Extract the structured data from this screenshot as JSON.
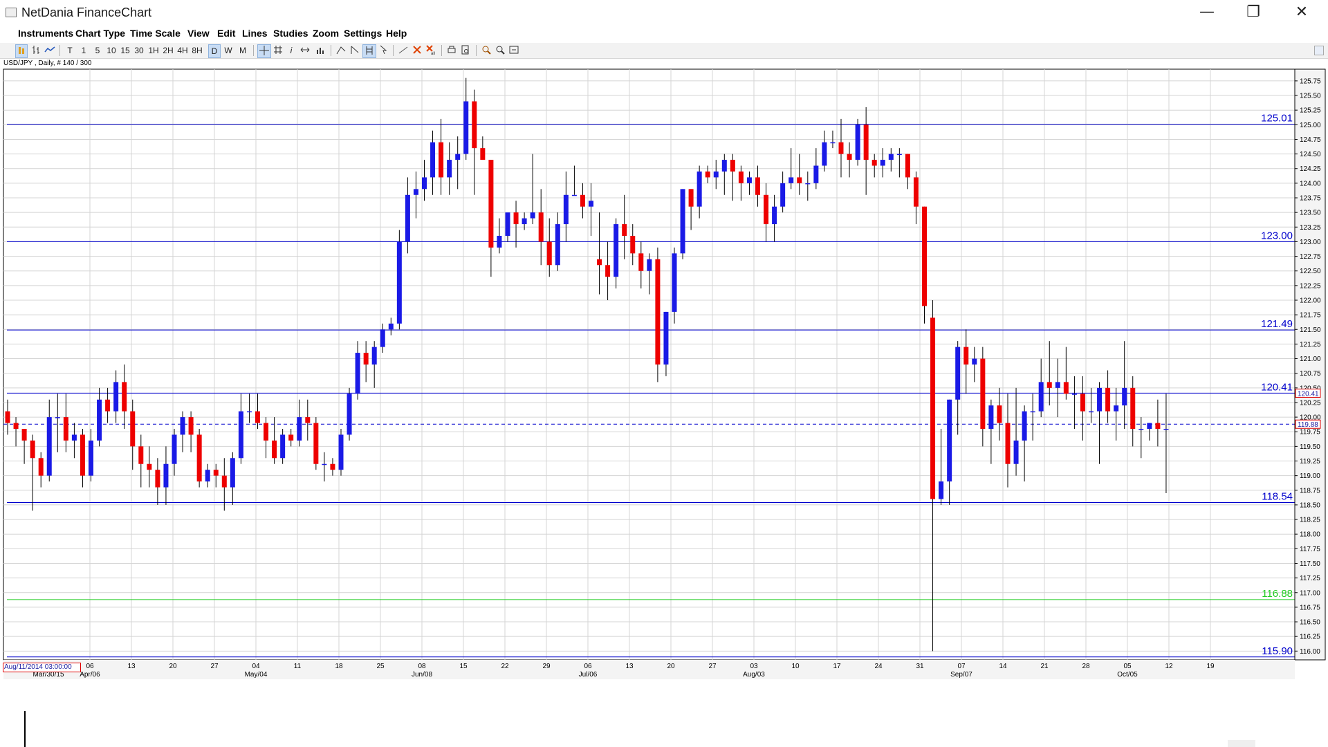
{
  "window": {
    "title": "NetDania FinanceChart",
    "minimize_glyph": "—",
    "restore_glyph": "❐",
    "close_glyph": "✕"
  },
  "menu": [
    "Instruments",
    "Chart Type",
    "Time Scale",
    "View",
    "Edit",
    "Lines",
    "Studies",
    "Zoom",
    "Settings",
    "Help"
  ],
  "toolbar": {
    "intervals": [
      "T",
      "1",
      "5",
      "10",
      "15",
      "30",
      "1H",
      "2H",
      "4H",
      "8H",
      "D",
      "W",
      "M"
    ],
    "active_interval": "D"
  },
  "symbol_label": "USD/JPY , Daily, # 140 / 300",
  "cursor_timestamp": "Aug/11/2014 03:00:00",
  "colors": {
    "up": "#1a1ae6",
    "down": "#ee0000",
    "level": "#0000cc",
    "support": "#22cc22",
    "grid": "#d4d4d4",
    "axis_bg": "#f4f4f4"
  },
  "chart_data": {
    "type": "candlestick",
    "instrument": "USD/JPY",
    "interval": "Daily",
    "ylim": [
      115.85,
      125.95
    ],
    "y_ticks": [
      "116.00",
      "116.25",
      "116.50",
      "116.75",
      "117.00",
      "117.25",
      "117.50",
      "117.75",
      "118.00",
      "118.25",
      "118.50",
      "118.75",
      "119.00",
      "119.25",
      "119.50",
      "119.75",
      "120.00",
      "120.25",
      "120.50",
      "120.75",
      "121.00",
      "121.25",
      "121.50",
      "121.75",
      "122.00",
      "122.25",
      "122.50",
      "122.75",
      "123.00",
      "123.25",
      "123.50",
      "123.75",
      "124.00",
      "124.25",
      "124.50",
      "124.75",
      "125.00",
      "125.25",
      "125.50",
      "125.75"
    ],
    "x_ticks": [
      {
        "label": "06",
        "major": "Apr/06"
      },
      {
        "label": "13"
      },
      {
        "label": "20"
      },
      {
        "label": "27"
      },
      {
        "label": "04",
        "major": "May/04"
      },
      {
        "label": "11"
      },
      {
        "label": "18"
      },
      {
        "label": "25"
      },
      {
        "label": "08",
        "major": "Jun/08"
      },
      {
        "label": "15"
      },
      {
        "label": "22"
      },
      {
        "label": "29"
      },
      {
        "label": "06",
        "major": "Jul/06"
      },
      {
        "label": "13"
      },
      {
        "label": "20"
      },
      {
        "label": "27"
      },
      {
        "label": "03",
        "major": "Aug/03"
      },
      {
        "label": "10"
      },
      {
        "label": "17"
      },
      {
        "label": "24"
      },
      {
        "label": "31"
      },
      {
        "label": "07",
        "major": "Sep/07"
      },
      {
        "label": "14"
      },
      {
        "label": "21"
      },
      {
        "label": "28"
      },
      {
        "label": "05",
        "major": "Oct/05"
      },
      {
        "label": "12"
      },
      {
        "label": "19"
      }
    ],
    "first_major_label": "Mar/30/15",
    "horizontal_levels": [
      {
        "value": 125.01,
        "label": "125.01",
        "color": "#0000cc"
      },
      {
        "value": 123.0,
        "label": "123.00",
        "color": "#0000cc"
      },
      {
        "value": 121.49,
        "label": "121.49",
        "color": "#0000cc"
      },
      {
        "value": 120.41,
        "label": "120.41",
        "color": "#0000cc"
      },
      {
        "value": 118.54,
        "label": "118.54",
        "color": "#0000cc"
      },
      {
        "value": 116.88,
        "label": "116.88",
        "color": "#22cc22"
      },
      {
        "value": 115.9,
        "label": "115.90",
        "color": "#0000cc"
      }
    ],
    "price_markers": [
      {
        "value": 120.41,
        "label": "120.41",
        "color": "#e00000"
      },
      {
        "value": 119.88,
        "label": "119.88",
        "color": "#e00000"
      }
    ],
    "last_price": 119.88,
    "candles": [
      [
        120.1,
        120.3,
        119.7,
        119.9
      ],
      [
        119.9,
        120.0,
        119.5,
        119.8
      ],
      [
        119.8,
        119.8,
        119.2,
        119.6
      ],
      [
        119.6,
        119.7,
        118.4,
        119.3
      ],
      [
        119.3,
        119.4,
        118.8,
        119.0
      ],
      [
        119.0,
        120.3,
        118.9,
        120.0
      ],
      [
        120.0,
        120.4,
        119.4,
        120.0
      ],
      [
        120.0,
        120.4,
        119.4,
        119.6
      ],
      [
        119.6,
        119.9,
        119.3,
        119.7
      ],
      [
        119.7,
        119.8,
        118.8,
        119.0
      ],
      [
        119.0,
        119.8,
        118.9,
        119.6
      ],
      [
        119.6,
        120.5,
        119.5,
        120.3
      ],
      [
        120.3,
        120.5,
        119.9,
        120.1
      ],
      [
        120.1,
        120.8,
        119.9,
        120.6
      ],
      [
        120.6,
        120.9,
        119.8,
        120.1
      ],
      [
        120.1,
        120.3,
        119.1,
        119.5
      ],
      [
        119.5,
        119.7,
        118.8,
        119.2
      ],
      [
        119.2,
        119.5,
        118.8,
        119.1
      ],
      [
        119.1,
        119.3,
        118.5,
        118.8
      ],
      [
        118.8,
        119.5,
        118.5,
        119.2
      ],
      [
        119.2,
        119.8,
        119.0,
        119.7
      ],
      [
        119.7,
        120.1,
        119.4,
        120.0
      ],
      [
        120.0,
        120.1,
        119.4,
        119.7
      ],
      [
        119.7,
        119.8,
        118.8,
        118.9
      ],
      [
        118.9,
        119.2,
        118.8,
        119.1
      ],
      [
        119.1,
        119.2,
        118.8,
        119.0
      ],
      [
        119.0,
        119.3,
        118.4,
        118.8
      ],
      [
        118.8,
        119.4,
        118.5,
        119.3
      ],
      [
        119.3,
        120.4,
        119.2,
        120.1
      ],
      [
        120.1,
        120.4,
        119.9,
        120.1
      ],
      [
        120.1,
        120.4,
        119.8,
        119.9
      ],
      [
        119.9,
        120.0,
        119.3,
        119.6
      ],
      [
        119.6,
        120.0,
        119.2,
        119.3
      ],
      [
        119.3,
        119.8,
        119.2,
        119.7
      ],
      [
        119.7,
        119.8,
        119.5,
        119.6
      ],
      [
        119.6,
        120.3,
        119.5,
        120.0
      ],
      [
        120.0,
        120.3,
        119.6,
        119.9
      ],
      [
        119.9,
        120.0,
        119.1,
        119.2
      ],
      [
        119.2,
        119.4,
        118.9,
        119.2
      ],
      [
        119.2,
        119.3,
        119.0,
        119.1
      ],
      [
        119.1,
        119.8,
        119.0,
        119.7
      ],
      [
        119.7,
        120.5,
        119.6,
        120.4
      ],
      [
        120.4,
        121.3,
        120.3,
        121.1
      ],
      [
        121.1,
        121.3,
        120.6,
        120.9
      ],
      [
        120.9,
        121.3,
        120.5,
        121.2
      ],
      [
        121.2,
        121.6,
        121.1,
        121.5
      ],
      [
        121.5,
        121.7,
        121.4,
        121.6
      ],
      [
        121.6,
        123.2,
        121.5,
        123.0
      ],
      [
        123.0,
        124.1,
        122.8,
        123.8
      ],
      [
        123.8,
        124.2,
        123.4,
        123.9
      ],
      [
        123.9,
        124.4,
        123.7,
        124.1
      ],
      [
        124.1,
        124.9,
        123.8,
        124.7
      ],
      [
        124.7,
        125.1,
        123.8,
        124.1
      ],
      [
        124.1,
        124.7,
        123.8,
        124.4
      ],
      [
        124.4,
        124.8,
        123.9,
        124.5
      ],
      [
        124.5,
        125.8,
        124.4,
        125.4
      ],
      [
        125.4,
        125.6,
        123.8,
        124.6
      ],
      [
        124.6,
        124.8,
        124.4,
        124.4
      ],
      [
        124.4,
        124.4,
        122.4,
        122.9
      ],
      [
        122.9,
        123.4,
        122.8,
        123.1
      ],
      [
        123.1,
        123.4,
        123.0,
        123.5
      ],
      [
        123.5,
        123.7,
        122.9,
        123.3
      ],
      [
        123.3,
        123.5,
        123.2,
        123.4
      ],
      [
        123.4,
        124.5,
        123.3,
        123.5
      ],
      [
        123.5,
        123.9,
        122.6,
        123.0
      ],
      [
        123.0,
        123.4,
        122.4,
        122.6
      ],
      [
        122.6,
        123.5,
        122.5,
        123.3
      ],
      [
        123.3,
        124.2,
        123.0,
        123.8
      ],
      [
        123.8,
        124.3,
        123.8,
        123.8
      ],
      [
        123.8,
        124.0,
        123.4,
        123.6
      ],
      [
        123.6,
        124.0,
        123.1,
        123.7
      ],
      [
        122.7,
        123.5,
        122.1,
        122.6
      ],
      [
        122.6,
        123.0,
        122.0,
        122.4
      ],
      [
        122.4,
        123.4,
        122.2,
        123.3
      ],
      [
        123.3,
        123.8,
        122.7,
        123.1
      ],
      [
        123.1,
        123.3,
        122.6,
        122.8
      ],
      [
        122.8,
        123.0,
        122.2,
        122.5
      ],
      [
        122.5,
        122.8,
        122.1,
        122.7
      ],
      [
        122.7,
        122.9,
        120.6,
        120.9
      ],
      [
        120.9,
        121.8,
        120.7,
        121.8
      ],
      [
        121.8,
        122.9,
        121.6,
        122.8
      ],
      [
        122.8,
        123.9,
        122.7,
        123.9
      ],
      [
        123.9,
        123.9,
        123.2,
        123.6
      ],
      [
        123.6,
        124.3,
        123.4,
        124.2
      ],
      [
        124.2,
        124.3,
        124.0,
        124.1
      ],
      [
        124.1,
        124.4,
        123.9,
        124.2
      ],
      [
        124.2,
        124.5,
        123.8,
        124.4
      ],
      [
        124.4,
        124.5,
        123.7,
        124.2
      ],
      [
        124.2,
        124.3,
        123.7,
        124.0
      ],
      [
        124.0,
        124.2,
        123.8,
        124.1
      ],
      [
        124.1,
        124.3,
        123.6,
        123.8
      ],
      [
        123.8,
        124.0,
        123.0,
        123.3
      ],
      [
        123.3,
        123.8,
        123.0,
        123.6
      ],
      [
        123.6,
        124.2,
        123.5,
        124.0
      ],
      [
        124.0,
        124.6,
        123.9,
        124.1
      ],
      [
        124.1,
        124.5,
        123.8,
        124.0
      ],
      [
        124.0,
        124.2,
        123.7,
        124.0
      ],
      [
        124.0,
        124.6,
        123.9,
        124.3
      ],
      [
        124.3,
        124.9,
        124.2,
        124.7
      ],
      [
        124.7,
        124.9,
        124.6,
        124.7
      ],
      [
        124.7,
        125.1,
        124.1,
        124.5
      ],
      [
        124.5,
        124.7,
        124.1,
        124.4
      ],
      [
        124.4,
        125.1,
        124.3,
        125.0
      ],
      [
        125.0,
        125.3,
        123.8,
        124.4
      ],
      [
        124.4,
        124.5,
        124.1,
        124.3
      ],
      [
        124.3,
        124.6,
        124.1,
        124.4
      ],
      [
        124.4,
        124.6,
        124.2,
        124.5
      ],
      [
        124.5,
        124.6,
        124.1,
        124.5
      ],
      [
        124.5,
        124.5,
        123.9,
        124.1
      ],
      [
        124.1,
        124.2,
        123.3,
        123.6
      ],
      [
        123.6,
        123.6,
        121.6,
        121.9
      ],
      [
        121.7,
        122.0,
        116.0,
        118.6
      ],
      [
        118.6,
        119.8,
        118.5,
        118.9
      ],
      [
        118.9,
        120.3,
        118.5,
        120.3
      ],
      [
        120.3,
        121.3,
        119.7,
        121.2
      ],
      [
        121.2,
        121.5,
        120.4,
        120.9
      ],
      [
        120.9,
        121.2,
        120.6,
        121.0
      ],
      [
        121.0,
        121.2,
        119.5,
        119.8
      ],
      [
        119.8,
        120.3,
        119.2,
        120.2
      ],
      [
        120.2,
        120.5,
        119.6,
        119.9
      ],
      [
        119.9,
        120.4,
        118.8,
        119.2
      ],
      [
        119.2,
        120.5,
        119.0,
        119.6
      ],
      [
        119.6,
        120.2,
        118.9,
        120.1
      ],
      [
        120.1,
        120.4,
        119.6,
        120.1
      ],
      [
        120.1,
        121.0,
        120.0,
        120.6
      ],
      [
        120.6,
        121.3,
        120.2,
        120.5
      ],
      [
        120.5,
        121.0,
        120.0,
        120.6
      ],
      [
        120.6,
        121.2,
        120.3,
        120.4
      ],
      [
        120.4,
        120.7,
        119.8,
        120.4
      ],
      [
        120.4,
        120.7,
        119.6,
        120.1
      ],
      [
        120.1,
        120.5,
        119.9,
        120.1
      ],
      [
        120.1,
        120.6,
        119.2,
        120.5
      ],
      [
        120.5,
        120.8,
        119.9,
        120.1
      ],
      [
        120.1,
        120.5,
        119.6,
        120.2
      ],
      [
        120.2,
        121.3,
        119.8,
        120.5
      ],
      [
        120.5,
        120.7,
        119.5,
        119.8
      ],
      [
        119.8,
        120.0,
        119.3,
        119.8
      ],
      [
        119.8,
        119.9,
        119.6,
        119.9
      ],
      [
        119.9,
        120.3,
        119.5,
        119.8
      ],
      [
        119.8,
        120.4,
        118.7,
        119.8
      ]
    ]
  }
}
